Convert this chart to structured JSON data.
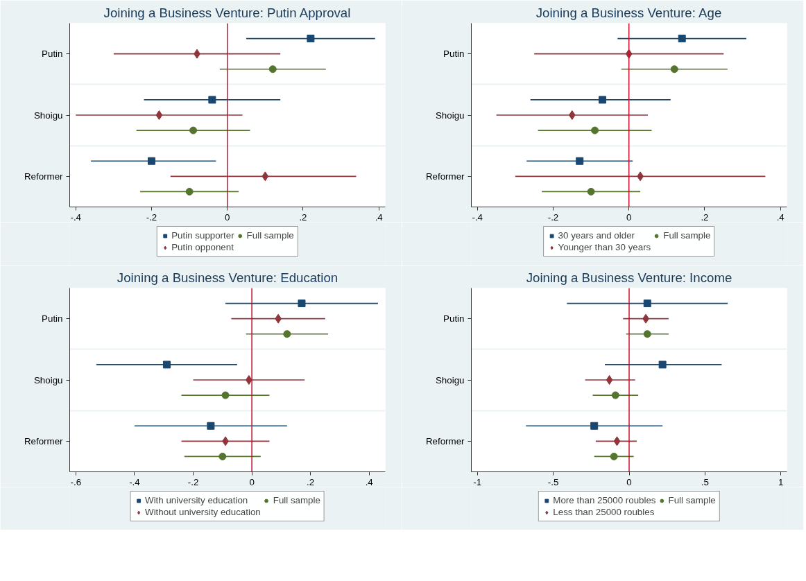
{
  "chart_data": [
    {
      "type": "scatter",
      "title": "Joining a Business Venture: Putin Approval",
      "orientation": "horizontal",
      "categories": [
        "Putin",
        "Shoigu",
        "Reformer"
      ],
      "xlim": [
        -0.416,
        0.417
      ],
      "xticks": [
        {
          "value": -0.4,
          "label": "-.4"
        },
        {
          "value": -0.2,
          "label": "-.2"
        },
        0,
        {
          "value": 0.2,
          "label": ".2"
        },
        {
          "value": 0.4,
          "label": ".4"
        }
      ],
      "grid": "y",
      "legend": "bottom",
      "ref_lines": [
        {
          "axis": "x",
          "value": 0,
          "color": "#c8102e"
        }
      ],
      "series": [
        {
          "name": "Putin supporter",
          "color": "#1a476f",
          "marker": "square",
          "values": [
            0.22,
            -0.04,
            -0.2
          ],
          "errors": [
            [
              0.05,
              0.39
            ],
            [
              -0.22,
              0.14
            ],
            [
              -0.36,
              -0.03
            ]
          ]
        },
        {
          "name": "Putin opponent",
          "color": "#90353b",
          "marker": "diamond",
          "values": [
            -0.08,
            -0.18,
            0.1
          ],
          "errors": [
            [
              -0.3,
              0.14
            ],
            [
              -0.4,
              0.04
            ],
            [
              -0.15,
              0.34
            ]
          ]
        },
        {
          "name": "Full sample",
          "color": "#55752f",
          "marker": "circle",
          "values": [
            0.12,
            -0.09,
            -0.1
          ],
          "errors": [
            [
              -0.02,
              0.26
            ],
            [
              -0.24,
              0.06
            ],
            [
              -0.23,
              0.03
            ]
          ]
        }
      ]
    },
    {
      "type": "scatter",
      "title": "Joining a Business Venture: Age",
      "orientation": "horizontal",
      "categories": [
        "Putin",
        "Shoigu",
        "Reformer"
      ],
      "xlim": [
        -0.416,
        0.417
      ],
      "xticks": [
        {
          "value": -0.4,
          "label": "-.4"
        },
        {
          "value": -0.2,
          "label": "-.2"
        },
        0,
        {
          "value": 0.2,
          "label": ".2"
        },
        {
          "value": 0.4,
          "label": ".4"
        }
      ],
      "grid": "y",
      "legend": "bottom",
      "ref_lines": [
        {
          "axis": "x",
          "value": 0,
          "color": "#c8102e"
        }
      ],
      "series": [
        {
          "name": "30 years and older",
          "color": "#1a476f",
          "marker": "square",
          "values": [
            0.14,
            -0.07,
            -0.13
          ],
          "errors": [
            [
              -0.03,
              0.31
            ],
            [
              -0.26,
              0.11
            ],
            [
              -0.27,
              0.01
            ]
          ]
        },
        {
          "name": "Younger than 30 years",
          "color": "#90353b",
          "marker": "diamond",
          "values": [
            0.0,
            -0.15,
            0.03
          ],
          "errors": [
            [
              -0.25,
              0.25
            ],
            [
              -0.35,
              0.05
            ],
            [
              -0.3,
              0.36
            ]
          ]
        },
        {
          "name": "Full sample",
          "color": "#55752f",
          "marker": "circle",
          "values": [
            0.12,
            -0.09,
            -0.1
          ],
          "errors": [
            [
              -0.02,
              0.26
            ],
            [
              -0.24,
              0.06
            ],
            [
              -0.23,
              0.03
            ]
          ]
        }
      ]
    },
    {
      "type": "scatter",
      "title": "Joining a Business Venture: Education",
      "orientation": "horizontal",
      "categories": [
        "Putin",
        "Shoigu",
        "Reformer"
      ],
      "xlim": [
        -0.621,
        0.455
      ],
      "xticks": [
        {
          "value": -0.6,
          "label": "-.6"
        },
        {
          "value": -0.4,
          "label": "-.4"
        },
        {
          "value": -0.2,
          "label": "-.2"
        },
        0,
        {
          "value": 0.2,
          "label": ".2"
        },
        {
          "value": 0.4,
          "label": ".4"
        }
      ],
      "grid": "y",
      "legend": "bottom",
      "ref_lines": [
        {
          "axis": "x",
          "value": 0,
          "color": "#c8102e"
        }
      ],
      "series": [
        {
          "name": "With university education",
          "color": "#1a476f",
          "marker": "square",
          "values": [
            0.17,
            -0.29,
            -0.14
          ],
          "errors": [
            [
              -0.09,
              0.43
            ],
            [
              -0.53,
              -0.05
            ],
            [
              -0.4,
              0.12
            ]
          ]
        },
        {
          "name": "Without university education",
          "color": "#90353b",
          "marker": "diamond",
          "values": [
            0.09,
            -0.01,
            -0.09
          ],
          "errors": [
            [
              -0.07,
              0.25
            ],
            [
              -0.2,
              0.18
            ],
            [
              -0.24,
              0.06
            ]
          ]
        },
        {
          "name": "Full sample",
          "color": "#55752f",
          "marker": "circle",
          "values": [
            0.12,
            -0.09,
            -0.1
          ],
          "errors": [
            [
              -0.02,
              0.26
            ],
            [
              -0.24,
              0.06
            ],
            [
              -0.23,
              0.03
            ]
          ]
        }
      ]
    },
    {
      "type": "scatter",
      "title": "Joining a Business Venture: Income",
      "orientation": "horizontal",
      "categories": [
        "Putin",
        "Shoigu",
        "Reformer"
      ],
      "xlim": [
        -1.04,
        1.04
      ],
      "xticks": [
        -1,
        {
          "value": -0.5,
          "label": "-.5"
        },
        0,
        {
          "value": 0.5,
          "label": ".5"
        },
        1
      ],
      "grid": "y",
      "legend": "bottom",
      "ref_lines": [
        {
          "axis": "x",
          "value": 0,
          "color": "#c8102e"
        }
      ],
      "series": [
        {
          "name": "More than 25000 roubles",
          "color": "#1a476f",
          "marker": "square",
          "values": [
            0.12,
            0.22,
            -0.23
          ],
          "errors": [
            [
              -0.41,
              0.65
            ],
            [
              -0.16,
              0.61
            ],
            [
              -0.68,
              0.22
            ]
          ]
        },
        {
          "name": "Less than 25000 roubles",
          "color": "#90353b",
          "marker": "diamond",
          "values": [
            0.11,
            -0.13,
            -0.08
          ],
          "errors": [
            [
              -0.04,
              0.26
            ],
            [
              -0.29,
              0.04
            ],
            [
              -0.22,
              0.05
            ]
          ]
        },
        {
          "name": "Full sample",
          "color": "#55752f",
          "marker": "circle",
          "values": [
            0.12,
            -0.09,
            -0.1
          ],
          "errors": [
            [
              -0.02,
              0.26
            ],
            [
              -0.24,
              0.06
            ],
            [
              -0.23,
              0.03
            ]
          ]
        }
      ]
    }
  ]
}
